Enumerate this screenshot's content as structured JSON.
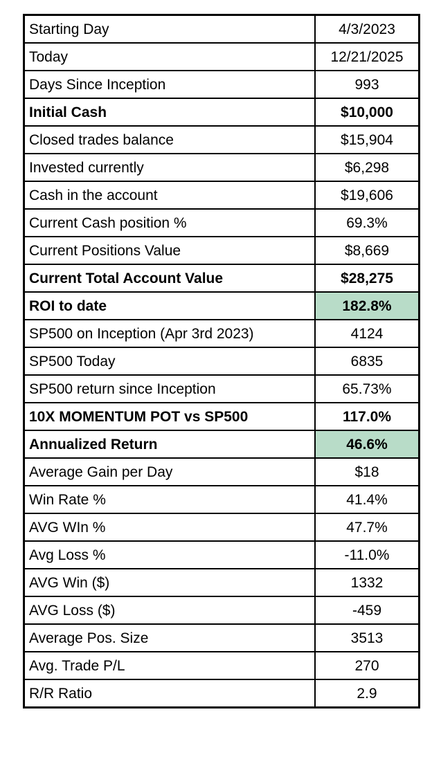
{
  "chart_data": {
    "type": "table",
    "description_of_content": "Trading account performance statistics table, two columns (metric label, value), 25 rows",
    "rows": [
      {
        "label": "Starting Day",
        "value": "4/3/2023",
        "bold": false,
        "highlight": false
      },
      {
        "label": "Today",
        "value": "12/21/2025",
        "bold": false,
        "highlight": false
      },
      {
        "label": "Days Since Inception",
        "value": "993",
        "bold": false,
        "highlight": false
      },
      {
        "label": "Initial Cash",
        "value": "$10,000",
        "bold": true,
        "highlight": false
      },
      {
        "label": "Closed trades balance",
        "value": "$15,904",
        "bold": false,
        "highlight": false
      },
      {
        "label": "Invested currently",
        "value": "$6,298",
        "bold": false,
        "highlight": false
      },
      {
        "label": "Cash in the account",
        "value": "$19,606",
        "bold": false,
        "highlight": false
      },
      {
        "label": "Current Cash position %",
        "value": "69.3%",
        "bold": false,
        "highlight": false
      },
      {
        "label": "Current Positions Value",
        "value": "$8,669",
        "bold": false,
        "highlight": false
      },
      {
        "label": "Current Total Account Value",
        "value": "$28,275",
        "bold": true,
        "highlight": false
      },
      {
        "label": "ROI to date",
        "value": "182.8%",
        "bold": true,
        "highlight": true
      },
      {
        "label": "SP500 on Inception (Apr 3rd 2023)",
        "value": "4124",
        "bold": false,
        "highlight": false
      },
      {
        "label": "SP500 Today",
        "value": "6835",
        "bold": false,
        "highlight": false
      },
      {
        "label": "SP500 return since Inception",
        "value": "65.73%",
        "bold": false,
        "highlight": false
      },
      {
        "label": "10X MOMENTUM POT vs SP500",
        "value": "117.0%",
        "bold": true,
        "highlight": false
      },
      {
        "label": "Annualized Return",
        "value": "46.6%",
        "bold": true,
        "highlight": true
      },
      {
        "label": "Average Gain per Day",
        "value": "$18",
        "bold": false,
        "highlight": false
      },
      {
        "label": "Win Rate %",
        "value": "41.4%",
        "bold": false,
        "highlight": false
      },
      {
        "label": "AVG WIn %",
        "value": "47.7%",
        "bold": false,
        "highlight": false
      },
      {
        "label": "Avg Loss %",
        "value": "-11.0%",
        "bold": false,
        "highlight": false
      },
      {
        "label": "AVG Win ($)",
        "value": "1332",
        "bold": false,
        "highlight": false
      },
      {
        "label": "AVG Loss ($)",
        "value": "-459",
        "bold": false,
        "highlight": false
      },
      {
        "label": "Average Pos. Size",
        "value": "3513",
        "bold": false,
        "highlight": false
      },
      {
        "label": "Avg. Trade P/L",
        "value": "270",
        "bold": false,
        "highlight": false
      },
      {
        "label": "R/R Ratio",
        "value": "2.9",
        "bold": false,
        "highlight": false
      }
    ]
  },
  "colors": {
    "highlight_green": "#b8dcc8",
    "border": "#000000",
    "background": "#ffffff",
    "text": "#000000"
  }
}
